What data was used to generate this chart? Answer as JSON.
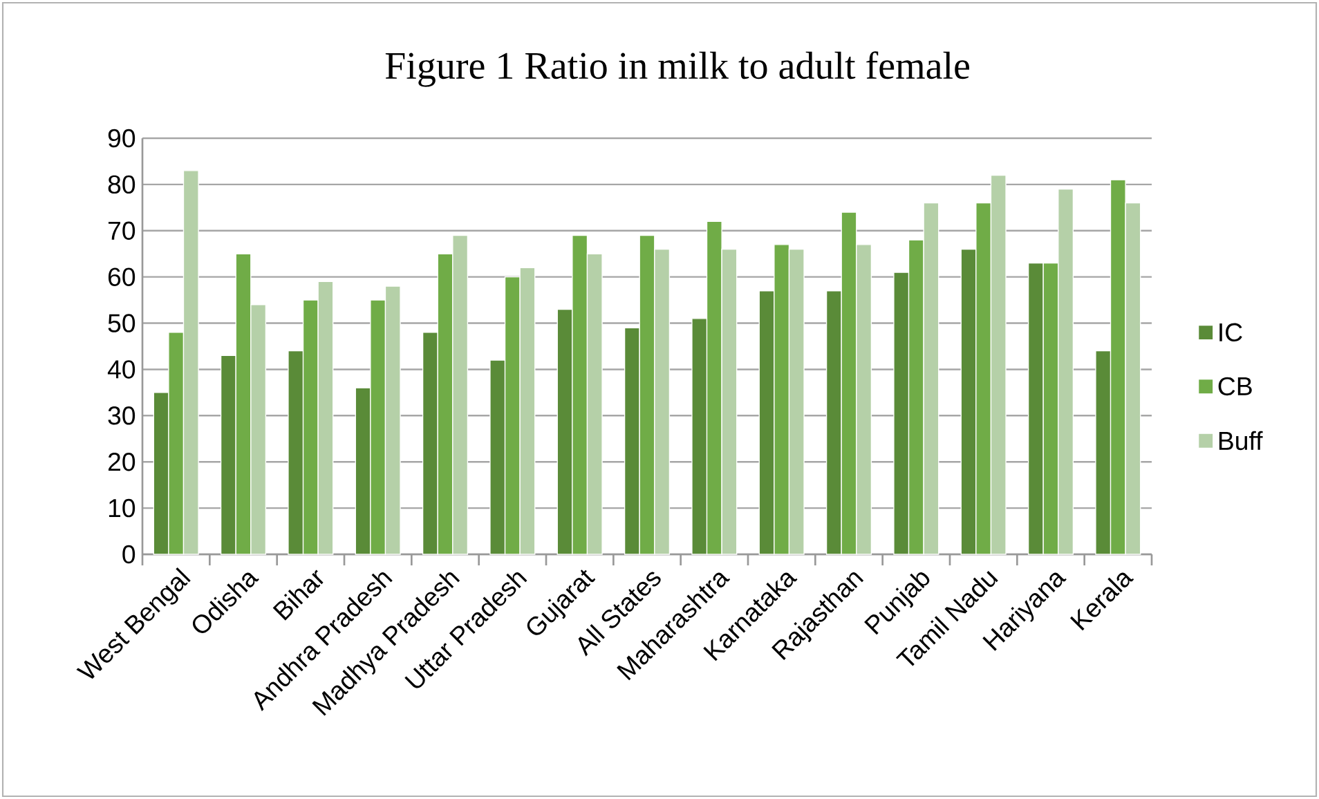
{
  "chart_data": {
    "type": "bar",
    "title": "Figure 1 Ratio in milk to adult female",
    "categories": [
      "West Bengal",
      "Odisha",
      "Bihar",
      "Andhra Pradesh",
      "Madhya Pradesh",
      "Uttar Pradesh",
      "Gujarat",
      "All States",
      "Maharashtra",
      "Karnataka",
      "Rajasthan",
      "Punjab",
      "Tamil Nadu",
      "Hariyana",
      "Kerala"
    ],
    "series": [
      {
        "name": "IC",
        "color": "#5a8b38",
        "values": [
          35,
          43,
          44,
          36,
          48,
          42,
          53,
          49,
          51,
          57,
          57,
          61,
          66,
          63,
          44
        ]
      },
      {
        "name": "CB",
        "color": "#70ac47",
        "values": [
          48,
          65,
          55,
          55,
          65,
          60,
          69,
          69,
          72,
          67,
          74,
          68,
          76,
          63,
          81
        ]
      },
      {
        "name": "Buff",
        "color": "#b5d0a8",
        "values": [
          83,
          54,
          59,
          58,
          69,
          62,
          65,
          66,
          66,
          66,
          67,
          76,
          82,
          79,
          76
        ]
      }
    ],
    "ylim": [
      0,
      90
    ],
    "yticks": [
      0,
      10,
      20,
      30,
      40,
      50,
      60,
      70,
      80,
      90
    ],
    "grid": "y",
    "legend": "right"
  }
}
